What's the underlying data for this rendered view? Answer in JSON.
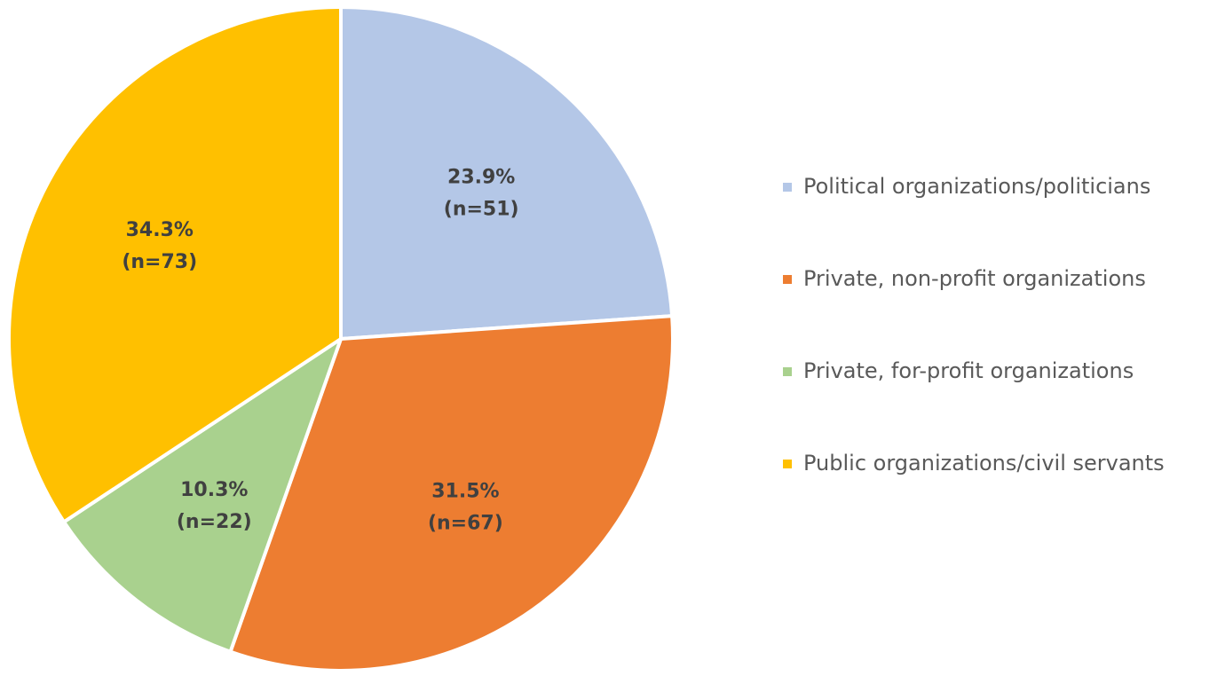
{
  "chart_data": {
    "type": "pie",
    "title": "",
    "slices": [
      {
        "name": "Political organizations/politicians",
        "percent": 23.9,
        "n": 51,
        "pct_label": "23.9%",
        "n_label": "(n=51)",
        "color": "#B4C7E7"
      },
      {
        "name": "Private, non-profit organizations",
        "percent": 31.5,
        "n": 67,
        "pct_label": "31.5%",
        "n_label": "(n=67)",
        "color": "#ED7D31"
      },
      {
        "name": "Private, for-profit organizations",
        "percent": 10.3,
        "n": 22,
        "pct_label": "10.3%",
        "n_label": "(n=22)",
        "color": "#A9D18E"
      },
      {
        "name": "Public organizations/civil servants",
        "percent": 34.3,
        "n": 73,
        "pct_label": "34.3%",
        "n_label": "(n=73)",
        "color": "#FFC000"
      }
    ],
    "legend_position": "right",
    "start_angle": "top, clockwise"
  }
}
